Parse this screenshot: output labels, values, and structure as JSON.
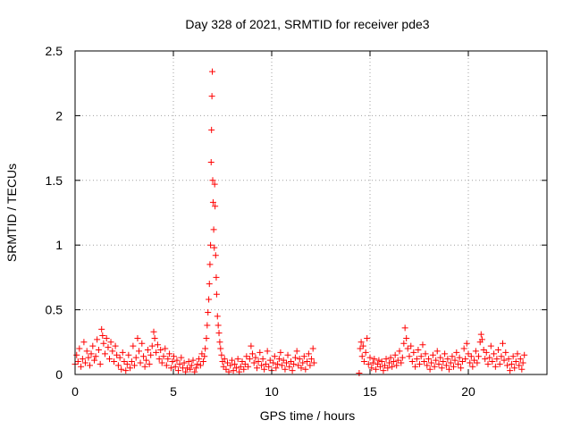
{
  "chart_data": {
    "type": "scatter",
    "title": "Day 328 of 2021, SRMTID for receiver pde3",
    "xlabel": "GPS time / hours",
    "ylabel": "SRMTID / TECUs",
    "xlim": [
      0,
      24
    ],
    "ylim": [
      0,
      2.5
    ],
    "x_ticks": [
      0,
      5,
      10,
      15,
      20
    ],
    "x_tick_labels": [
      "0",
      "5",
      "10",
      "15",
      "20"
    ],
    "y_ticks": [
      0,
      0.5,
      1,
      1.5,
      2,
      2.5
    ],
    "y_tick_labels": [
      "0",
      "0.5",
      "1",
      "1.5",
      "2",
      "2.5"
    ],
    "grid": true,
    "marker": "+",
    "marker_color": "#ff0000",
    "series": [
      {
        "name": "SRMTID",
        "points": [
          [
            0.0,
            0.08
          ],
          [
            0.08,
            0.15
          ],
          [
            0.15,
            0.1
          ],
          [
            0.22,
            0.2
          ],
          [
            0.3,
            0.06
          ],
          [
            0.38,
            0.12
          ],
          [
            0.45,
            0.25
          ],
          [
            0.52,
            0.09
          ],
          [
            0.6,
            0.18
          ],
          [
            0.68,
            0.13
          ],
          [
            0.75,
            0.07
          ],
          [
            0.82,
            0.16
          ],
          [
            0.9,
            0.22
          ],
          [
            0.98,
            0.11
          ],
          [
            1.05,
            0.14
          ],
          [
            1.12,
            0.27
          ],
          [
            1.2,
            0.19
          ],
          [
            1.28,
            0.08
          ],
          [
            1.35,
            0.35
          ],
          [
            1.4,
            0.3
          ],
          [
            1.45,
            0.24
          ],
          [
            1.52,
            0.16
          ],
          [
            1.6,
            0.28
          ],
          [
            1.68,
            0.21
          ],
          [
            1.75,
            0.12
          ],
          [
            1.82,
            0.25
          ],
          [
            1.9,
            0.18
          ],
          [
            1.98,
            0.1
          ],
          [
            2.05,
            0.22
          ],
          [
            2.12,
            0.15
          ],
          [
            2.2,
            0.07
          ],
          [
            2.28,
            0.13
          ],
          [
            2.35,
            0.04
          ],
          [
            2.42,
            0.17
          ],
          [
            2.5,
            0.1
          ],
          [
            2.58,
            0.03
          ],
          [
            2.65,
            0.08
          ],
          [
            2.72,
            0.15
          ],
          [
            2.8,
            0.05
          ],
          [
            2.88,
            0.1
          ],
          [
            2.95,
            0.22
          ],
          [
            3.02,
            0.07
          ],
          [
            3.1,
            0.13
          ],
          [
            3.18,
            0.28
          ],
          [
            3.25,
            0.18
          ],
          [
            3.32,
            0.09
          ],
          [
            3.4,
            0.24
          ],
          [
            3.48,
            0.14
          ],
          [
            3.55,
            0.06
          ],
          [
            3.62,
            0.11
          ],
          [
            3.7,
            0.19
          ],
          [
            3.78,
            0.08
          ],
          [
            3.85,
            0.15
          ],
          [
            3.92,
            0.22
          ],
          [
            4.0,
            0.33
          ],
          [
            4.05,
            0.28
          ],
          [
            4.12,
            0.17
          ],
          [
            4.2,
            0.23
          ],
          [
            4.28,
            0.12
          ],
          [
            4.35,
            0.19
          ],
          [
            4.42,
            0.09
          ],
          [
            4.5,
            0.14
          ],
          [
            4.58,
            0.2
          ],
          [
            4.65,
            0.07
          ],
          [
            4.72,
            0.12
          ],
          [
            4.8,
            0.16
          ],
          [
            4.88,
            0.05
          ],
          [
            4.95,
            0.1
          ],
          [
            5.02,
            0.14
          ],
          [
            5.1,
            0.06
          ],
          [
            5.18,
            0.11
          ],
          [
            5.25,
            0.03
          ],
          [
            5.32,
            0.08
          ],
          [
            5.4,
            0.13
          ],
          [
            5.48,
            0.05
          ],
          [
            5.55,
            0.09
          ],
          [
            5.62,
            0.02
          ],
          [
            5.7,
            0.05
          ],
          [
            5.78,
            0.1
          ],
          [
            5.85,
            0.04
          ],
          [
            5.92,
            0.07
          ],
          [
            6.0,
            0.11
          ],
          [
            6.08,
            0.02
          ],
          [
            6.15,
            0.05
          ],
          [
            6.22,
            0.08
          ],
          [
            6.3,
            0.12
          ],
          [
            6.38,
            0.07
          ],
          [
            6.45,
            0.16
          ],
          [
            6.52,
            0.1
          ],
          [
            6.58,
            0.14
          ],
          [
            6.62,
            0.2
          ],
          [
            6.68,
            0.28
          ],
          [
            6.72,
            0.38
          ],
          [
            6.76,
            0.48
          ],
          [
            6.8,
            0.58
          ],
          [
            6.83,
            0.7
          ],
          [
            6.86,
            0.85
          ],
          [
            6.89,
            1.0
          ],
          [
            6.92,
            1.64
          ],
          [
            6.94,
            1.89
          ],
          [
            6.96,
            2.15
          ],
          [
            6.98,
            2.34
          ],
          [
            7.0,
            1.5
          ],
          [
            7.02,
            1.33
          ],
          [
            7.05,
            1.12
          ],
          [
            7.08,
            0.98
          ],
          [
            7.1,
            1.47
          ],
          [
            7.12,
            1.3
          ],
          [
            7.15,
            0.92
          ],
          [
            7.18,
            0.75
          ],
          [
            7.2,
            0.62
          ],
          [
            7.24,
            0.45
          ],
          [
            7.28,
            0.38
          ],
          [
            7.32,
            0.32
          ],
          [
            7.36,
            0.25
          ],
          [
            7.4,
            0.2
          ],
          [
            7.45,
            0.15
          ],
          [
            7.5,
            0.1
          ],
          [
            7.55,
            0.06
          ],
          [
            7.6,
            0.12
          ],
          [
            7.68,
            0.04
          ],
          [
            7.75,
            0.09
          ],
          [
            7.82,
            0.02
          ],
          [
            7.9,
            0.07
          ],
          [
            7.98,
            0.11
          ],
          [
            8.05,
            0.03
          ],
          [
            8.12,
            0.08
          ],
          [
            8.2,
            0.05
          ],
          [
            8.28,
            0.12
          ],
          [
            8.35,
            0.02
          ],
          [
            8.42,
            0.06
          ],
          [
            8.5,
            0.1
          ],
          [
            8.58,
            0.04
          ],
          [
            8.65,
            0.08
          ],
          [
            8.72,
            0.14
          ],
          [
            8.8,
            0.06
          ],
          [
            8.88,
            0.12
          ],
          [
            8.95,
            0.22
          ],
          [
            9.02,
            0.16
          ],
          [
            9.1,
            0.09
          ],
          [
            9.18,
            0.13
          ],
          [
            9.25,
            0.05
          ],
          [
            9.32,
            0.1
          ],
          [
            9.4,
            0.17
          ],
          [
            9.48,
            0.07
          ],
          [
            9.55,
            0.12
          ],
          [
            9.62,
            0.04
          ],
          [
            9.7,
            0.08
          ],
          [
            9.78,
            0.18
          ],
          [
            9.85,
            0.06
          ],
          [
            9.92,
            0.11
          ],
          [
            10.0,
            0.03
          ],
          [
            10.08,
            0.09
          ],
          [
            10.15,
            0.14
          ],
          [
            10.22,
            0.05
          ],
          [
            10.3,
            0.08
          ],
          [
            10.38,
            0.12
          ],
          [
            10.45,
            0.17
          ],
          [
            10.52,
            0.07
          ],
          [
            10.6,
            0.11
          ],
          [
            10.68,
            0.04
          ],
          [
            10.75,
            0.09
          ],
          [
            10.82,
            0.15
          ],
          [
            10.9,
            0.06
          ],
          [
            10.98,
            0.1
          ],
          [
            11.05,
            0.03
          ],
          [
            11.12,
            0.08
          ],
          [
            11.2,
            0.13
          ],
          [
            11.28,
            0.18
          ],
          [
            11.35,
            0.07
          ],
          [
            11.42,
            0.12
          ],
          [
            11.5,
            0.05
          ],
          [
            11.58,
            0.09
          ],
          [
            11.65,
            0.14
          ],
          [
            11.72,
            0.04
          ],
          [
            11.8,
            0.1
          ],
          [
            11.88,
            0.16
          ],
          [
            11.95,
            0.07
          ],
          [
            12.02,
            0.12
          ],
          [
            12.1,
            0.2
          ],
          [
            12.15,
            0.09
          ],
          [
            14.45,
            0.01
          ],
          [
            14.5,
            0.2
          ],
          [
            14.55,
            0.25
          ],
          [
            14.6,
            0.14
          ],
          [
            14.65,
            0.22
          ],
          [
            14.7,
            0.1
          ],
          [
            14.78,
            0.17
          ],
          [
            14.85,
            0.28
          ],
          [
            14.92,
            0.08
          ],
          [
            15.0,
            0.13
          ],
          [
            15.08,
            0.05
          ],
          [
            15.15,
            0.09
          ],
          [
            15.22,
            0.12
          ],
          [
            15.3,
            0.04
          ],
          [
            15.38,
            0.08
          ],
          [
            15.45,
            0.11
          ],
          [
            15.52,
            0.06
          ],
          [
            15.6,
            0.1
          ],
          [
            15.68,
            0.03
          ],
          [
            15.75,
            0.07
          ],
          [
            15.82,
            0.12
          ],
          [
            15.9,
            0.05
          ],
          [
            15.98,
            0.09
          ],
          [
            16.05,
            0.13
          ],
          [
            16.12,
            0.06
          ],
          [
            16.2,
            0.1
          ],
          [
            16.28,
            0.15
          ],
          [
            16.35,
            0.07
          ],
          [
            16.42,
            0.11
          ],
          [
            16.5,
            0.18
          ],
          [
            16.58,
            0.09
          ],
          [
            16.65,
            0.13
          ],
          [
            16.72,
            0.24
          ],
          [
            16.78,
            0.36
          ],
          [
            16.85,
            0.28
          ],
          [
            16.92,
            0.2
          ],
          [
            17.0,
            0.14
          ],
          [
            17.08,
            0.22
          ],
          [
            17.15,
            0.1
          ],
          [
            17.22,
            0.17
          ],
          [
            17.3,
            0.06
          ],
          [
            17.38,
            0.12
          ],
          [
            17.45,
            0.19
          ],
          [
            17.52,
            0.08
          ],
          [
            17.6,
            0.14
          ],
          [
            17.68,
            0.23
          ],
          [
            17.75,
            0.1
          ],
          [
            17.82,
            0.16
          ],
          [
            17.9,
            0.07
          ],
          [
            17.98,
            0.12
          ],
          [
            18.05,
            0.04
          ],
          [
            18.12,
            0.09
          ],
          [
            18.2,
            0.15
          ],
          [
            18.28,
            0.06
          ],
          [
            18.35,
            0.11
          ],
          [
            18.42,
            0.18
          ],
          [
            18.5,
            0.08
          ],
          [
            18.58,
            0.13
          ],
          [
            18.65,
            0.05
          ],
          [
            18.72,
            0.1
          ],
          [
            18.8,
            0.16
          ],
          [
            18.88,
            0.07
          ],
          [
            18.95,
            0.12
          ],
          [
            19.02,
            0.04
          ],
          [
            19.1,
            0.09
          ],
          [
            19.18,
            0.14
          ],
          [
            19.25,
            0.06
          ],
          [
            19.32,
            0.11
          ],
          [
            19.4,
            0.17
          ],
          [
            19.48,
            0.08
          ],
          [
            19.55,
            0.13
          ],
          [
            19.62,
            0.05
          ],
          [
            19.7,
            0.1
          ],
          [
            19.78,
            0.2
          ],
          [
            19.85,
            0.12
          ],
          [
            19.92,
            0.24
          ],
          [
            20.0,
            0.16
          ],
          [
            20.08,
            0.09
          ],
          [
            20.15,
            0.14
          ],
          [
            20.22,
            0.06
          ],
          [
            20.3,
            0.11
          ],
          [
            20.38,
            0.18
          ],
          [
            20.45,
            0.09
          ],
          [
            20.52,
            0.14
          ],
          [
            20.6,
            0.25
          ],
          [
            20.65,
            0.31
          ],
          [
            20.7,
            0.27
          ],
          [
            20.78,
            0.19
          ],
          [
            20.85,
            0.12
          ],
          [
            20.92,
            0.17
          ],
          [
            21.0,
            0.08
          ],
          [
            21.08,
            0.13
          ],
          [
            21.15,
            0.22
          ],
          [
            21.22,
            0.1
          ],
          [
            21.3,
            0.16
          ],
          [
            21.38,
            0.06
          ],
          [
            21.45,
            0.12
          ],
          [
            21.52,
            0.19
          ],
          [
            21.6,
            0.08
          ],
          [
            21.68,
            0.14
          ],
          [
            21.75,
            0.24
          ],
          [
            21.82,
            0.11
          ],
          [
            21.9,
            0.17
          ],
          [
            21.98,
            0.07
          ],
          [
            22.05,
            0.12
          ],
          [
            22.12,
            0.03
          ],
          [
            22.2,
            0.08
          ],
          [
            22.28,
            0.14
          ],
          [
            22.35,
            0.05
          ],
          [
            22.42,
            0.1
          ],
          [
            22.5,
            0.16
          ],
          [
            22.58,
            0.07
          ],
          [
            22.65,
            0.12
          ],
          [
            22.72,
            0.04
          ],
          [
            22.78,
            0.09
          ],
          [
            22.85,
            0.15
          ]
        ]
      }
    ]
  }
}
